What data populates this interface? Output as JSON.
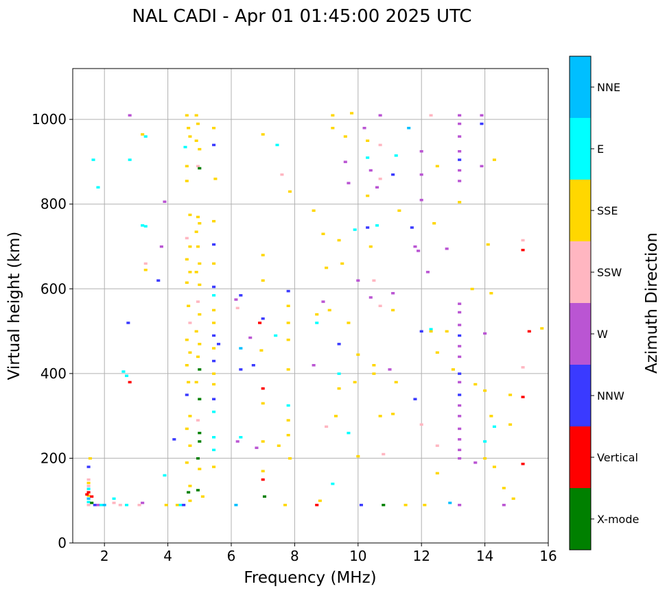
{
  "chart_data": {
    "type": "scatter",
    "title": "NAL CADI - Apr 01 01:45:00 2025 UTC",
    "xlabel": "Frequency (MHz)",
    "ylabel": "Virtual height (km)",
    "xlim": [
      1,
      16
    ],
    "ylim": [
      0,
      1120
    ],
    "xticks": [
      2,
      4,
      6,
      8,
      10,
      12,
      14,
      16
    ],
    "yticks": [
      0,
      200,
      400,
      600,
      800,
      1000
    ],
    "grid": true,
    "colorbar": {
      "label": "Azimuth Direction",
      "categories": [
        "X-mode",
        "Vertical",
        "NNW",
        "W",
        "SSW",
        "SSE",
        "E",
        "NNE"
      ],
      "colors": [
        "#008000",
        "#ff0000",
        "#3a3aff",
        "#ba55d3",
        "#ffb6c1",
        "#ffd700",
        "#00ffff",
        "#00bfff"
      ]
    },
    "point_fields": [
      "frequency_mhz",
      "height_km",
      "direction_index"
    ],
    "points": [
      [
        1.5,
        90,
        4
      ],
      [
        1.5,
        97,
        6
      ],
      [
        1.5,
        105,
        7
      ],
      [
        1.5,
        112,
        5
      ],
      [
        1.5,
        120,
        1
      ],
      [
        1.5,
        128,
        6
      ],
      [
        1.5,
        135,
        4
      ],
      [
        1.5,
        142,
        5
      ],
      [
        1.5,
        150,
        4
      ],
      [
        1.5,
        180,
        2
      ],
      [
        1.55,
        200,
        5
      ],
      [
        1.45,
        115,
        1
      ],
      [
        1.6,
        95,
        0
      ],
      [
        1.6,
        110,
        1
      ],
      [
        1.7,
        90,
        2
      ],
      [
        1.8,
        90,
        3
      ],
      [
        1.9,
        90,
        6
      ],
      [
        2.0,
        90,
        7
      ],
      [
        2.3,
        95,
        4
      ],
      [
        2.3,
        105,
        6
      ],
      [
        2.5,
        90,
        4
      ],
      [
        2.7,
        90,
        6
      ],
      [
        3.2,
        95,
        3
      ],
      [
        3.1,
        90,
        4
      ],
      [
        1.65,
        905,
        6
      ],
      [
        1.8,
        840,
        6
      ],
      [
        2.6,
        405,
        6
      ],
      [
        2.7,
        395,
        6
      ],
      [
        2.8,
        380,
        1
      ],
      [
        2.75,
        520,
        2
      ],
      [
        2.8,
        1010,
        3
      ],
      [
        2.8,
        905,
        6
      ],
      [
        3.2,
        965,
        5
      ],
      [
        3.3,
        960,
        6
      ],
      [
        3.3,
        660,
        4
      ],
      [
        3.3,
        645,
        5
      ],
      [
        3.2,
        750,
        6
      ],
      [
        3.3,
        748,
        6
      ],
      [
        3.7,
        620,
        2
      ],
      [
        3.8,
        700,
        3
      ],
      [
        3.9,
        806,
        3
      ],
      [
        3.9,
        160,
        6
      ],
      [
        3.95,
        90,
        5
      ],
      [
        4.2,
        245,
        2
      ],
      [
        4.3,
        90,
        5
      ],
      [
        4.4,
        90,
        6
      ],
      [
        4.5,
        90,
        2
      ],
      [
        4.6,
        1010,
        5
      ],
      [
        4.65,
        980,
        5
      ],
      [
        4.7,
        960,
        5
      ],
      [
        4.55,
        935,
        6
      ],
      [
        4.6,
        890,
        5
      ],
      [
        4.6,
        855,
        5
      ],
      [
        4.7,
        775,
        5
      ],
      [
        4.6,
        720,
        4
      ],
      [
        4.7,
        700,
        5
      ],
      [
        4.6,
        670,
        5
      ],
      [
        4.7,
        640,
        5
      ],
      [
        4.6,
        615,
        5
      ],
      [
        4.65,
        560,
        5
      ],
      [
        4.7,
        520,
        4
      ],
      [
        4.6,
        480,
        5
      ],
      [
        4.7,
        450,
        5
      ],
      [
        4.6,
        420,
        5
      ],
      [
        4.65,
        380,
        5
      ],
      [
        4.6,
        350,
        2
      ],
      [
        4.7,
        300,
        5
      ],
      [
        4.6,
        270,
        5
      ],
      [
        4.7,
        230,
        5
      ],
      [
        4.6,
        190,
        5
      ],
      [
        4.7,
        135,
        5
      ],
      [
        4.65,
        120,
        0
      ],
      [
        4.7,
        100,
        5
      ],
      [
        4.9,
        1010,
        5
      ],
      [
        4.95,
        990,
        5
      ],
      [
        4.9,
        950,
        5
      ],
      [
        5.0,
        930,
        5
      ],
      [
        4.95,
        890,
        4
      ],
      [
        5.0,
        885,
        0
      ],
      [
        4.95,
        770,
        5
      ],
      [
        5.0,
        755,
        5
      ],
      [
        4.9,
        735,
        5
      ],
      [
        4.95,
        700,
        5
      ],
      [
        5.0,
        660,
        5
      ],
      [
        4.9,
        640,
        5
      ],
      [
        5.0,
        610,
        5
      ],
      [
        4.95,
        570,
        4
      ],
      [
        5.0,
        540,
        5
      ],
      [
        4.9,
        500,
        5
      ],
      [
        5.0,
        470,
        5
      ],
      [
        4.95,
        440,
        5
      ],
      [
        5.0,
        410,
        0
      ],
      [
        4.9,
        380,
        5
      ],
      [
        5.0,
        340,
        0
      ],
      [
        4.95,
        290,
        4
      ],
      [
        5.0,
        260,
        0
      ],
      [
        5.0,
        240,
        0
      ],
      [
        4.95,
        200,
        0
      ],
      [
        5.0,
        175,
        5
      ],
      [
        4.95,
        125,
        0
      ],
      [
        5.1,
        110,
        5
      ],
      [
        5.45,
        980,
        5
      ],
      [
        5.45,
        940,
        2
      ],
      [
        5.5,
        860,
        5
      ],
      [
        5.45,
        760,
        5
      ],
      [
        5.45,
        705,
        2
      ],
      [
        5.45,
        660,
        5
      ],
      [
        5.45,
        605,
        2
      ],
      [
        5.45,
        585,
        6
      ],
      [
        5.45,
        550,
        5
      ],
      [
        5.45,
        520,
        5
      ],
      [
        5.45,
        490,
        2
      ],
      [
        5.45,
        460,
        5
      ],
      [
        5.45,
        430,
        2
      ],
      [
        5.45,
        400,
        5
      ],
      [
        5.45,
        375,
        5
      ],
      [
        5.45,
        340,
        2
      ],
      [
        5.45,
        310,
        6
      ],
      [
        5.45,
        250,
        6
      ],
      [
        5.45,
        220,
        6
      ],
      [
        5.45,
        180,
        5
      ],
      [
        5.6,
        470,
        2
      ],
      [
        6.15,
        575,
        3
      ],
      [
        6.2,
        555,
        4
      ],
      [
        6.3,
        585,
        2
      ],
      [
        6.3,
        460,
        7
      ],
      [
        6.3,
        410,
        2
      ],
      [
        6.3,
        250,
        6
      ],
      [
        6.2,
        240,
        3
      ],
      [
        6.15,
        90,
        7
      ],
      [
        6.6,
        485,
        3
      ],
      [
        6.7,
        420,
        2
      ],
      [
        6.8,
        225,
        3
      ],
      [
        6.9,
        520,
        1
      ],
      [
        7.0,
        530,
        2
      ],
      [
        6.95,
        455,
        5
      ],
      [
        7.0,
        620,
        5
      ],
      [
        7.0,
        680,
        5
      ],
      [
        7.0,
        365,
        1
      ],
      [
        7.0,
        330,
        5
      ],
      [
        7.0,
        240,
        5
      ],
      [
        7.0,
        170,
        5
      ],
      [
        7.0,
        150,
        1
      ],
      [
        7.05,
        110,
        0
      ],
      [
        7.0,
        965,
        5
      ],
      [
        7.4,
        490,
        6
      ],
      [
        7.45,
        940,
        6
      ],
      [
        7.5,
        230,
        5
      ],
      [
        7.6,
        870,
        4
      ],
      [
        7.8,
        595,
        2
      ],
      [
        7.8,
        560,
        5
      ],
      [
        7.8,
        520,
        5
      ],
      [
        7.8,
        480,
        5
      ],
      [
        7.8,
        410,
        5
      ],
      [
        7.8,
        325,
        6
      ],
      [
        7.8,
        290,
        5
      ],
      [
        7.8,
        255,
        5
      ],
      [
        7.85,
        200,
        5
      ],
      [
        7.85,
        830,
        5
      ],
      [
        7.7,
        90,
        5
      ],
      [
        8.6,
        785,
        5
      ],
      [
        8.7,
        540,
        5
      ],
      [
        8.7,
        520,
        6
      ],
      [
        8.6,
        420,
        3
      ],
      [
        8.7,
        90,
        1
      ],
      [
        8.8,
        100,
        5
      ],
      [
        8.9,
        730,
        5
      ],
      [
        8.9,
        570,
        3
      ],
      [
        9.0,
        650,
        5
      ],
      [
        9.0,
        275,
        4
      ],
      [
        9.1,
        550,
        5
      ],
      [
        9.2,
        1010,
        5
      ],
      [
        9.2,
        980,
        5
      ],
      [
        9.2,
        140,
        6
      ],
      [
        9.3,
        300,
        5
      ],
      [
        9.4,
        715,
        5
      ],
      [
        9.4,
        470,
        2
      ],
      [
        9.4,
        400,
        6
      ],
      [
        9.4,
        365,
        5
      ],
      [
        9.5,
        660,
        5
      ],
      [
        9.6,
        960,
        5
      ],
      [
        9.6,
        900,
        3
      ],
      [
        9.7,
        850,
        3
      ],
      [
        9.7,
        520,
        5
      ],
      [
        9.7,
        260,
        6
      ],
      [
        9.8,
        1015,
        5
      ],
      [
        9.9,
        740,
        6
      ],
      [
        9.9,
        380,
        5
      ],
      [
        10.0,
        620,
        3
      ],
      [
        10.0,
        445,
        5
      ],
      [
        10.0,
        205,
        5
      ],
      [
        10.1,
        90,
        2
      ],
      [
        10.2,
        980,
        3
      ],
      [
        10.3,
        950,
        5
      ],
      [
        10.3,
        910,
        6
      ],
      [
        10.4,
        880,
        3
      ],
      [
        10.3,
        820,
        5
      ],
      [
        10.3,
        745,
        2
      ],
      [
        10.4,
        700,
        5
      ],
      [
        10.4,
        580,
        3
      ],
      [
        10.5,
        620,
        4
      ],
      [
        10.5,
        420,
        5
      ],
      [
        10.5,
        400,
        5
      ],
      [
        10.6,
        840,
        3
      ],
      [
        10.6,
        750,
        6
      ],
      [
        10.7,
        1010,
        3
      ],
      [
        10.7,
        940,
        4
      ],
      [
        10.7,
        860,
        4
      ],
      [
        10.7,
        560,
        4
      ],
      [
        10.7,
        300,
        5
      ],
      [
        10.8,
        210,
        4
      ],
      [
        10.8,
        90,
        0
      ],
      [
        11.0,
        410,
        3
      ],
      [
        11.1,
        870,
        2
      ],
      [
        11.1,
        590,
        3
      ],
      [
        11.1,
        550,
        5
      ],
      [
        11.2,
        380,
        5
      ],
      [
        11.1,
        305,
        5
      ],
      [
        11.2,
        915,
        6
      ],
      [
        11.3,
        785,
        5
      ],
      [
        11.5,
        90,
        5
      ],
      [
        11.6,
        980,
        7
      ],
      [
        11.7,
        745,
        2
      ],
      [
        11.8,
        340,
        2
      ],
      [
        11.8,
        700,
        3
      ],
      [
        11.9,
        690,
        3
      ],
      [
        12.0,
        925,
        3
      ],
      [
        12.0,
        870,
        3
      ],
      [
        12.0,
        810,
        3
      ],
      [
        12.0,
        500,
        2
      ],
      [
        12.0,
        280,
        4
      ],
      [
        12.1,
        90,
        5
      ],
      [
        12.2,
        640,
        3
      ],
      [
        12.3,
        1010,
        4
      ],
      [
        12.3,
        505,
        6
      ],
      [
        12.3,
        500,
        5
      ],
      [
        12.4,
        755,
        5
      ],
      [
        12.5,
        890,
        5
      ],
      [
        12.5,
        450,
        5
      ],
      [
        12.5,
        230,
        4
      ],
      [
        12.5,
        165,
        5
      ],
      [
        12.8,
        695,
        3
      ],
      [
        12.8,
        500,
        5
      ],
      [
        12.9,
        95,
        7
      ],
      [
        13.0,
        410,
        5
      ],
      [
        13.2,
        1010,
        3
      ],
      [
        13.2,
        990,
        3
      ],
      [
        13.2,
        960,
        3
      ],
      [
        13.2,
        925,
        3
      ],
      [
        13.2,
        905,
        2
      ],
      [
        13.2,
        880,
        3
      ],
      [
        13.2,
        855,
        3
      ],
      [
        13.2,
        805,
        5
      ],
      [
        13.2,
        565,
        3
      ],
      [
        13.2,
        545,
        3
      ],
      [
        13.2,
        515,
        3
      ],
      [
        13.2,
        490,
        2
      ],
      [
        13.2,
        465,
        3
      ],
      [
        13.2,
        440,
        3
      ],
      [
        13.2,
        400,
        2
      ],
      [
        13.2,
        380,
        3
      ],
      [
        13.2,
        350,
        2
      ],
      [
        13.2,
        325,
        3
      ],
      [
        13.2,
        300,
        3
      ],
      [
        13.2,
        270,
        3
      ],
      [
        13.2,
        245,
        3
      ],
      [
        13.2,
        220,
        3
      ],
      [
        13.2,
        200,
        3
      ],
      [
        13.2,
        90,
        3
      ],
      [
        13.6,
        600,
        5
      ],
      [
        13.7,
        375,
        5
      ],
      [
        13.7,
        190,
        3
      ],
      [
        13.9,
        1010,
        3
      ],
      [
        13.9,
        990,
        2
      ],
      [
        13.9,
        890,
        3
      ],
      [
        14.0,
        495,
        3
      ],
      [
        14.0,
        360,
        5
      ],
      [
        14.0,
        240,
        6
      ],
      [
        14.0,
        200,
        5
      ],
      [
        14.1,
        705,
        5
      ],
      [
        14.2,
        590,
        5
      ],
      [
        14.2,
        300,
        5
      ],
      [
        14.3,
        905,
        5
      ],
      [
        14.3,
        275,
        6
      ],
      [
        14.3,
        180,
        5
      ],
      [
        14.6,
        90,
        3
      ],
      [
        14.6,
        130,
        5
      ],
      [
        14.8,
        350,
        5
      ],
      [
        14.8,
        280,
        5
      ],
      [
        14.9,
        105,
        5
      ],
      [
        15.2,
        715,
        4
      ],
      [
        15.2,
        692,
        1
      ],
      [
        15.4,
        500,
        1
      ],
      [
        15.2,
        415,
        4
      ],
      [
        15.2,
        345,
        1
      ],
      [
        15.2,
        187,
        1
      ],
      [
        15.8,
        507,
        5
      ]
    ]
  }
}
